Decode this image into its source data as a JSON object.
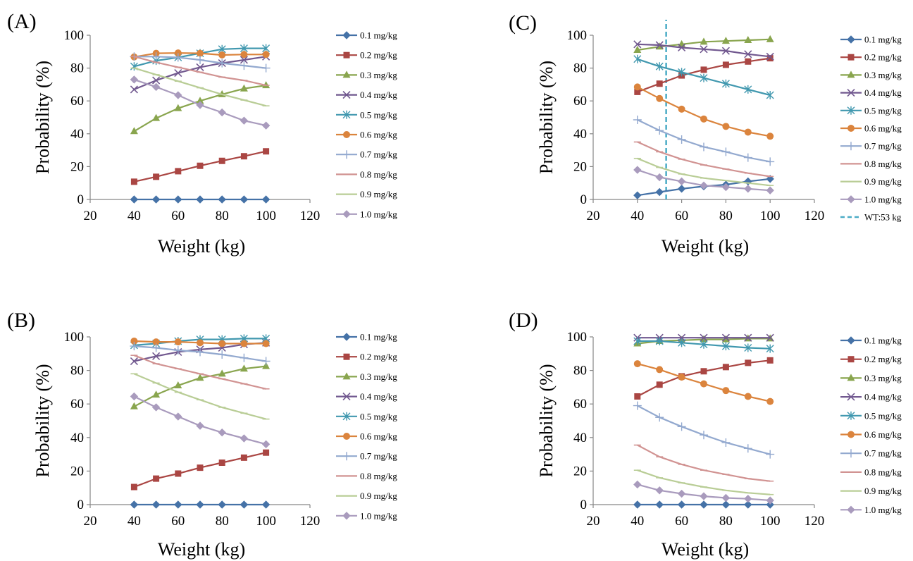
{
  "figure": {
    "panel_labels": [
      "(A)",
      "(B)",
      "(C)",
      "(D)"
    ]
  },
  "chart_data": [
    {
      "panel": "(A)",
      "type": "line",
      "xlabel": "Weight (kg)",
      "ylabel": "Probability (%)",
      "xlim": [
        20,
        120
      ],
      "ylim": [
        0,
        100
      ],
      "xticks": [
        20,
        40,
        60,
        80,
        100,
        120
      ],
      "yticks": [
        0,
        20,
        40,
        60,
        80,
        100
      ],
      "grid": false,
      "legend": "right",
      "x": [
        40,
        50,
        60,
        70,
        80,
        90,
        100
      ],
      "series": [
        {
          "name": "0.1 mg/kg",
          "values": [
            0,
            0,
            0,
            0,
            0,
            0,
            0
          ]
        },
        {
          "name": "0.2 mg/kg",
          "values": [
            10.8,
            13.8,
            17.2,
            20.5,
            23.5,
            26.3,
            29.3
          ]
        },
        {
          "name": "0.3 mg/kg",
          "values": [
            41.5,
            49.5,
            55.5,
            60.0,
            64.0,
            67.5,
            69.5
          ]
        },
        {
          "name": "0.4 mg/kg",
          "values": [
            67.0,
            72.5,
            77.0,
            80.5,
            83.0,
            85.0,
            87.0
          ]
        },
        {
          "name": "0.5 mg/kg",
          "values": [
            81.0,
            84.5,
            86.5,
            89.0,
            91.5,
            92.0,
            92.0
          ]
        },
        {
          "name": "0.6 mg/kg",
          "values": [
            86.8,
            89.0,
            89.2,
            89.0,
            88.0,
            88.3,
            88.3
          ]
        },
        {
          "name": "0.7 mg/kg",
          "values": [
            87.0,
            87.0,
            86.5,
            85.0,
            83.0,
            81.5,
            80.0
          ]
        },
        {
          "name": "0.8 mg/kg",
          "values": [
            87.0,
            83.5,
            80.5,
            77.5,
            74.5,
            72.5,
            69.5
          ]
        },
        {
          "name": "0.9 mg/kg",
          "values": [
            80.0,
            76.0,
            72.0,
            68.0,
            64.0,
            60.5,
            57.0
          ]
        },
        {
          "name": "1.0 mg/kg",
          "values": [
            73.0,
            68.5,
            63.5,
            57.5,
            53.0,
            48.0,
            45.0
          ]
        }
      ]
    },
    {
      "panel": "(B)",
      "type": "line",
      "xlabel": "Weight (kg)",
      "ylabel": "Probability (%)",
      "xlim": [
        20,
        120
      ],
      "ylim": [
        0,
        100
      ],
      "xticks": [
        20,
        40,
        60,
        80,
        100,
        120
      ],
      "yticks": [
        0,
        20,
        40,
        60,
        80,
        100
      ],
      "grid": false,
      "legend": "right",
      "x": [
        40,
        50,
        60,
        70,
        80,
        90,
        100
      ],
      "series": [
        {
          "name": "0.1 mg/kg",
          "values": [
            0,
            0,
            0,
            0,
            0,
            0,
            0
          ]
        },
        {
          "name": "0.2 mg/kg",
          "values": [
            10.5,
            15.5,
            18.5,
            22.0,
            25.0,
            28.0,
            31.0
          ]
        },
        {
          "name": "0.3 mg/kg",
          "values": [
            58.5,
            65.5,
            71.0,
            75.5,
            78.0,
            81.0,
            82.5
          ]
        },
        {
          "name": "0.4 mg/kg",
          "values": [
            85.5,
            88.5,
            91.0,
            92.5,
            93.5,
            95.5,
            96.5
          ]
        },
        {
          "name": "0.5 mg/kg",
          "values": [
            95.0,
            96.0,
            97.5,
            98.5,
            98.5,
            99.0,
            99.0
          ]
        },
        {
          "name": "0.6 mg/kg",
          "values": [
            97.5,
            97.0,
            97.0,
            96.5,
            96.0,
            96.0,
            96.0
          ]
        },
        {
          "name": "0.7 mg/kg",
          "values": [
            94.5,
            93.5,
            92.0,
            91.0,
            89.5,
            87.5,
            85.5
          ]
        },
        {
          "name": "0.8 mg/kg",
          "values": [
            89.0,
            84.0,
            81.0,
            78.0,
            75.0,
            72.0,
            69.0
          ]
        },
        {
          "name": "0.9 mg/kg",
          "values": [
            78.0,
            72.5,
            67.0,
            62.5,
            58.0,
            54.5,
            51.0
          ]
        },
        {
          "name": "1.0 mg/kg",
          "values": [
            64.5,
            58.0,
            52.5,
            47.0,
            43.0,
            39.5,
            36.0
          ]
        }
      ]
    },
    {
      "panel": "(C)",
      "type": "line",
      "xlabel": "Weight (kg)",
      "ylabel": "Probability (%)",
      "xlim": [
        20,
        120
      ],
      "ylim": [
        0,
        100
      ],
      "xticks": [
        20,
        40,
        60,
        80,
        100,
        120
      ],
      "yticks": [
        0,
        20,
        40,
        60,
        80,
        100
      ],
      "grid": false,
      "legend": "right",
      "x": [
        40,
        50,
        60,
        70,
        80,
        90,
        100
      ],
      "series": [
        {
          "name": "0.1 mg/kg",
          "values": [
            2.5,
            4.5,
            6.5,
            8.0,
            9.0,
            11.0,
            12.5
          ]
        },
        {
          "name": "0.2 mg/kg",
          "values": [
            65.5,
            70.5,
            75.5,
            79.0,
            82.0,
            84.0,
            86.0
          ]
        },
        {
          "name": "0.3 mg/kg",
          "values": [
            91.0,
            93.0,
            94.5,
            96.0,
            96.5,
            97.0,
            97.5
          ]
        },
        {
          "name": "0.4 mg/kg",
          "values": [
            94.5,
            94.0,
            92.5,
            91.5,
            90.5,
            88.5,
            87.0
          ]
        },
        {
          "name": "0.5 mg/kg",
          "values": [
            85.5,
            81.0,
            77.5,
            74.0,
            70.5,
            67.0,
            63.5
          ]
        },
        {
          "name": "0.6 mg/kg",
          "values": [
            68.5,
            61.5,
            55.0,
            49.0,
            44.5,
            41.0,
            38.5
          ]
        },
        {
          "name": "0.7 mg/kg",
          "values": [
            48.5,
            42.0,
            36.5,
            32.0,
            29.0,
            25.5,
            23.0
          ]
        },
        {
          "name": "0.8 mg/kg",
          "values": [
            35.0,
            29.0,
            24.5,
            21.0,
            18.5,
            16.0,
            14.0
          ]
        },
        {
          "name": "0.9 mg/kg",
          "values": [
            25.0,
            19.5,
            15.5,
            13.0,
            11.5,
            10.0,
            8.5
          ]
        },
        {
          "name": "1.0 mg/kg",
          "values": [
            18.0,
            13.5,
            11.0,
            8.5,
            7.5,
            6.5,
            5.5
          ]
        }
      ],
      "reference_line": {
        "name": "WT:53 kg",
        "x": 53
      }
    },
    {
      "panel": "(D)",
      "type": "line",
      "xlabel": "Weight (kg)",
      "ylabel": "Probability (%)",
      "xlim": [
        20,
        120
      ],
      "ylim": [
        0,
        100
      ],
      "xticks": [
        20,
        40,
        60,
        80,
        100,
        120
      ],
      "yticks": [
        0,
        20,
        40,
        60,
        80,
        100
      ],
      "grid": false,
      "legend": "right",
      "x": [
        40,
        50,
        60,
        70,
        80,
        90,
        100
      ],
      "series": [
        {
          "name": "0.1 mg/kg",
          "values": [
            0,
            0,
            0,
            0,
            0,
            0,
            0
          ]
        },
        {
          "name": "0.2 mg/kg",
          "values": [
            64.5,
            71.5,
            76.5,
            79.5,
            82.0,
            84.5,
            86.0
          ]
        },
        {
          "name": "0.3 mg/kg",
          "values": [
            96.0,
            97.5,
            98.0,
            98.5,
            98.5,
            99.0,
            99.0
          ]
        },
        {
          "name": "0.4 mg/kg",
          "values": [
            99.5,
            99.5,
            99.5,
            99.5,
            99.5,
            99.5,
            99.5
          ]
        },
        {
          "name": "0.5 mg/kg",
          "values": [
            97.5,
            97.5,
            96.5,
            95.5,
            94.5,
            93.5,
            93.0
          ]
        },
        {
          "name": "0.6 mg/kg",
          "values": [
            84.0,
            80.5,
            76.0,
            72.0,
            68.0,
            64.5,
            61.5
          ]
        },
        {
          "name": "0.7 mg/kg",
          "values": [
            59.0,
            52.0,
            46.5,
            41.5,
            37.0,
            33.5,
            30.0
          ]
        },
        {
          "name": "0.8 mg/kg",
          "values": [
            35.5,
            28.5,
            24.0,
            20.5,
            18.0,
            15.5,
            14.0
          ]
        },
        {
          "name": "0.9 mg/kg",
          "values": [
            20.5,
            16.0,
            13.0,
            10.5,
            8.5,
            7.0,
            6.0
          ]
        },
        {
          "name": "1.0 mg/kg",
          "values": [
            12.0,
            8.5,
            6.5,
            5.0,
            4.0,
            3.5,
            2.5
          ]
        }
      ]
    }
  ],
  "series_style": [
    {
      "color": "#4572A7",
      "marker": "diamond"
    },
    {
      "color": "#AA4643",
      "marker": "square"
    },
    {
      "color": "#89A54E",
      "marker": "triangle"
    },
    {
      "color": "#71588F",
      "marker": "x"
    },
    {
      "color": "#4198AF",
      "marker": "asterisk"
    },
    {
      "color": "#DB843D",
      "marker": "circle"
    },
    {
      "color": "#93A9CF",
      "marker": "plus"
    },
    {
      "color": "#D19392",
      "marker": "dash"
    },
    {
      "color": "#B9CD96",
      "marker": "dash"
    },
    {
      "color": "#A99BBD",
      "marker": "diamond"
    }
  ],
  "reference_line_style": {
    "color": "#4BACC6",
    "style": "dashed"
  }
}
